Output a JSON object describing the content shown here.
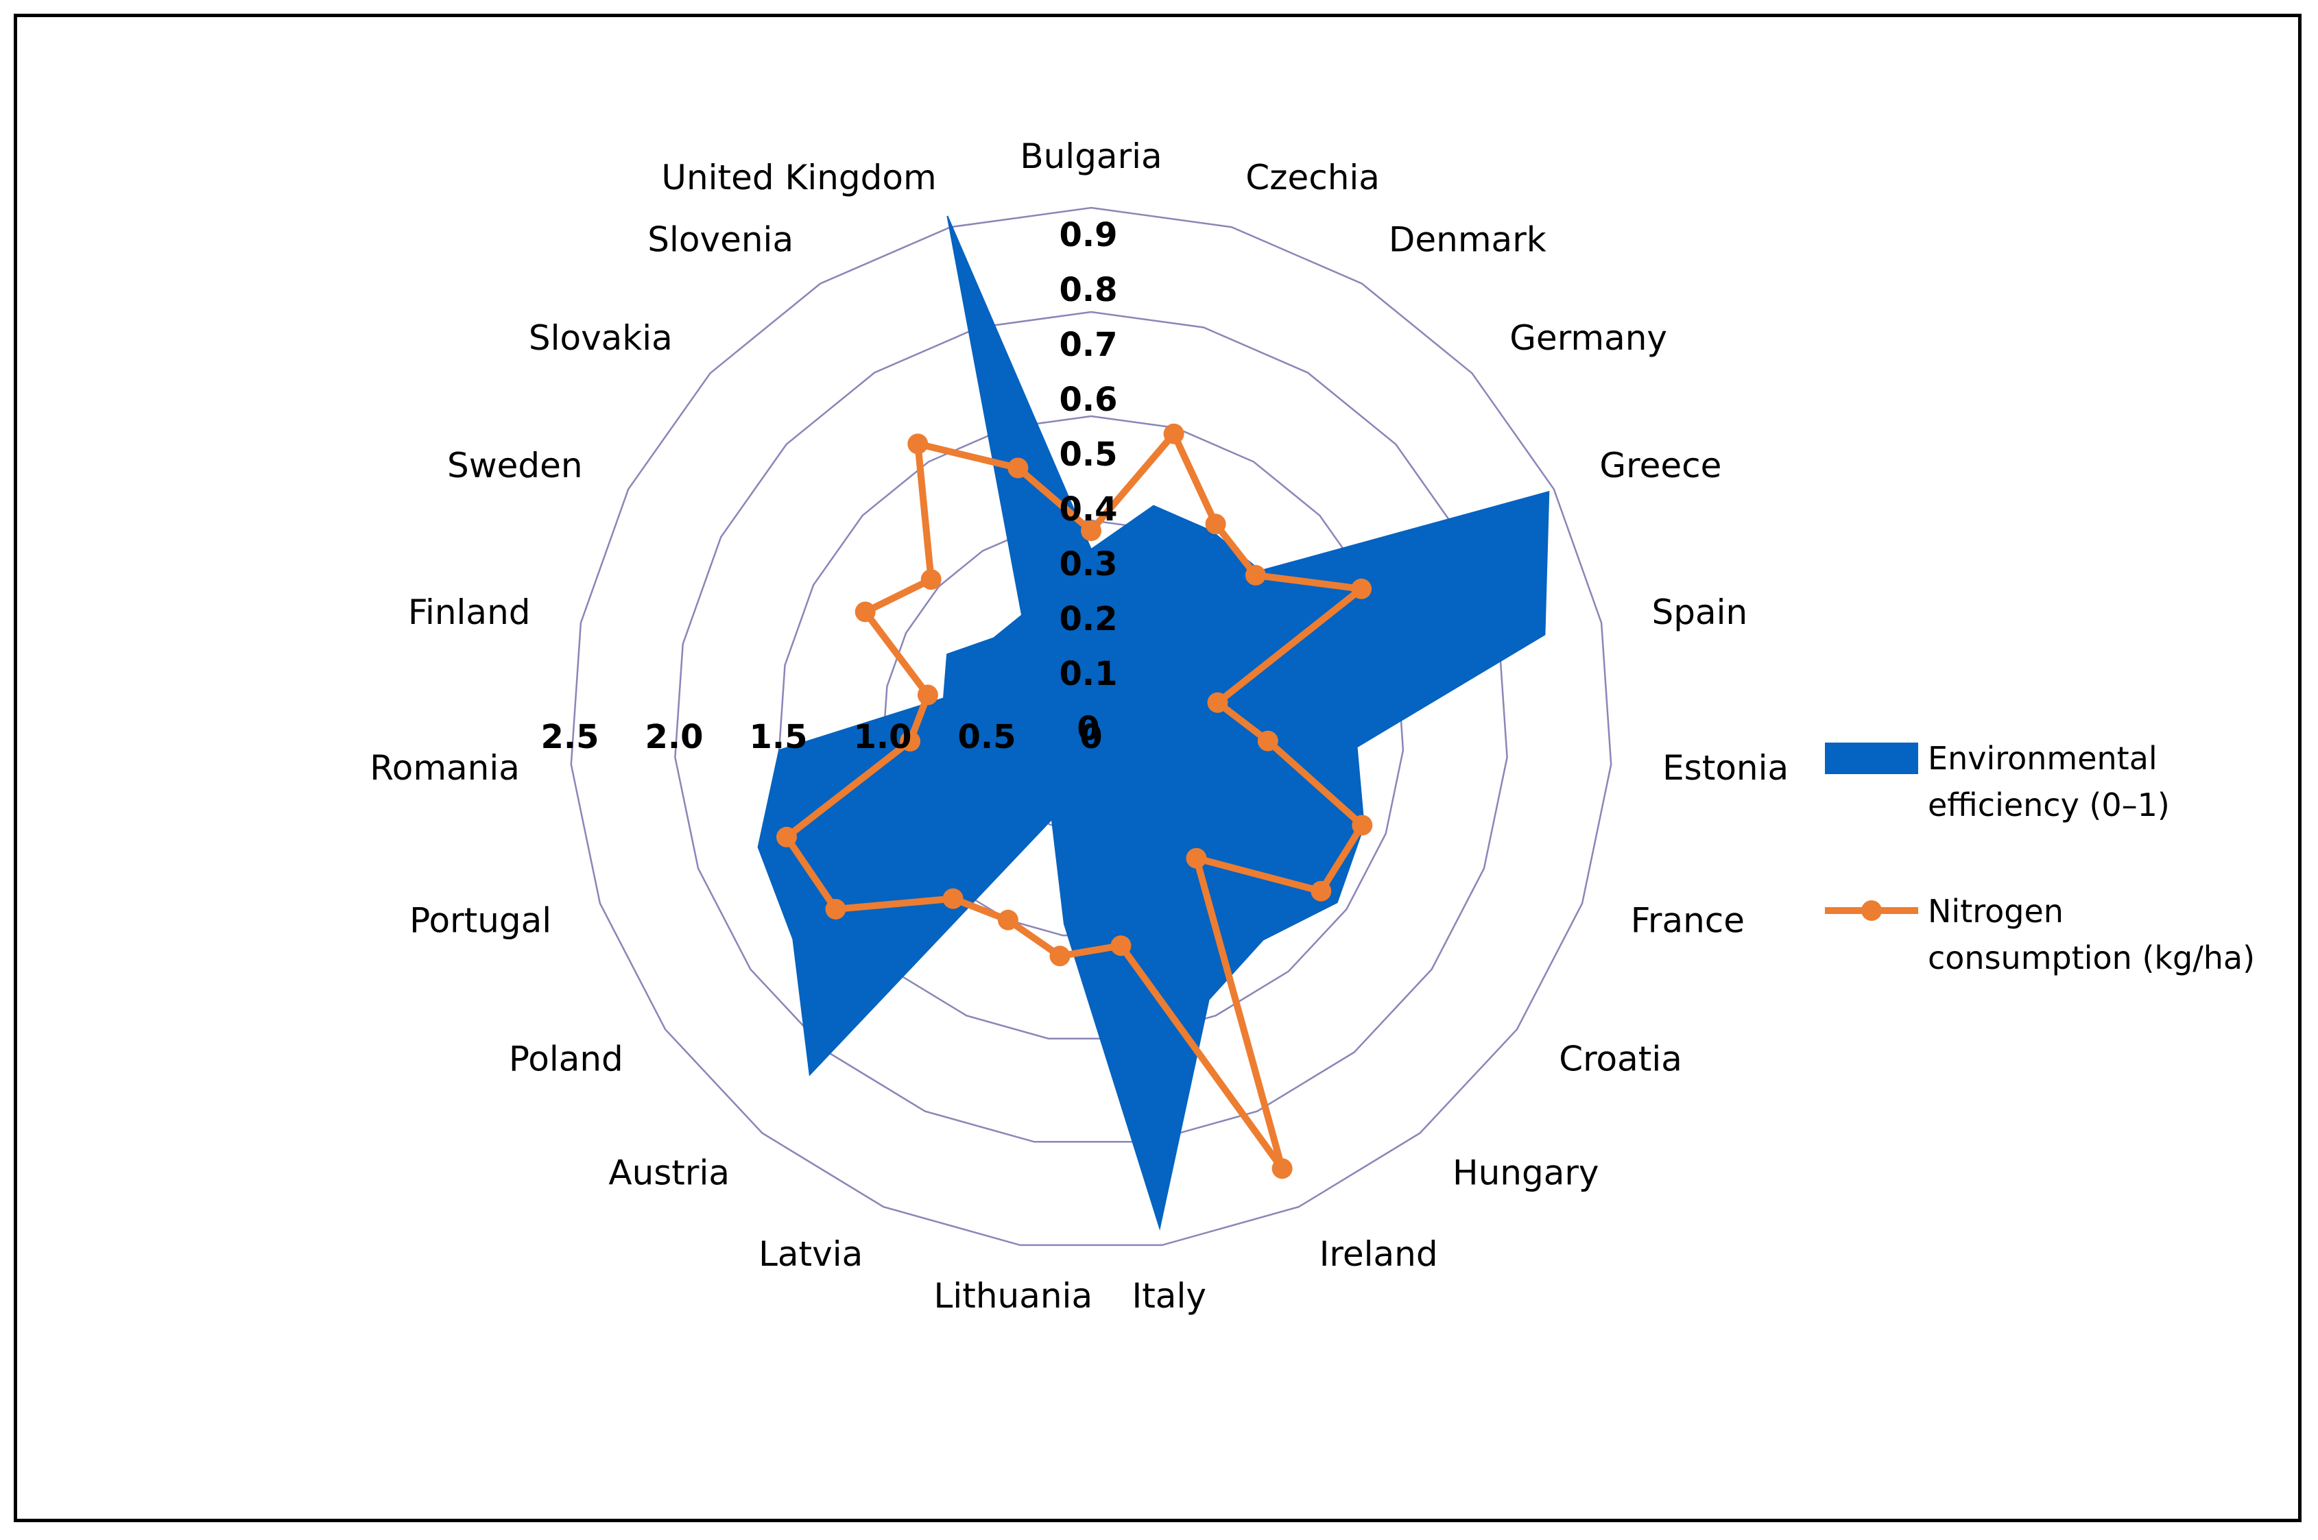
{
  "chart_data": {
    "type": "radar",
    "categories": [
      "Bulgaria",
      "Czechia",
      "Denmark",
      "Germany",
      "Greece",
      "Spain",
      "Estonia",
      "France",
      "Croatia",
      "Hungary",
      "Ireland",
      "Italy",
      "Lithuania",
      "Latvia",
      "Austria",
      "Poland",
      "Portugal",
      "Romania",
      "Finland",
      "Sweden",
      "Slovakia",
      "Slovenia",
      "United Kingdom"
    ],
    "series": [
      {
        "name": "Environmental efficiency (0–1)",
        "style": "filled area",
        "color": "#0563C1",
        "axis": "efficiency",
        "values": [
          0.31,
          0.4,
          0.4,
          0.4,
          0.89,
          0.8,
          0.46,
          0.5,
          0.52,
          0.47,
          0.51,
          0.87,
          0.34,
          0.17,
          0.77,
          0.63,
          0.61,
          0.54,
          0.26,
          0.28,
          0.23,
          0.23,
          0.92
        ]
      },
      {
        "name": "Nitrogen consumption (kg/ha)",
        "style": "line with markers",
        "color": "#ED7D31",
        "axis": "nitrogen",
        "values": [
          0.95,
          1.47,
          1.15,
          1.08,
          1.46,
          0.62,
          0.85,
          1.38,
          1.35,
          0.8,
          2.3,
          1.05,
          1.1,
          1.0,
          1.05,
          1.5,
          1.55,
          0.87,
          0.8,
          1.22,
          1.05,
          1.6,
          1.3
        ]
      }
    ],
    "radial_axis_efficiency": {
      "ticks": [
        "0",
        "0.1",
        "0.2",
        "0.3",
        "0.4",
        "0.5",
        "0.6",
        "0.7",
        "0.8",
        "0.9"
      ],
      "range": [
        0,
        0.9
      ]
    },
    "radial_axis_nitrogen": {
      "ticks": [
        "0",
        "0.5",
        "1.0",
        "1.5",
        "2.0",
        "2.5"
      ],
      "range": [
        0,
        2.5
      ]
    },
    "legend": {
      "position": "right",
      "items": [
        {
          "lines": [
            "Environmental",
            "efficiency (0–1)"
          ],
          "swatch": "area",
          "color": "#0563C1"
        },
        {
          "lines": [
            "Nitrogen",
            "consumption (kg/ha)"
          ],
          "swatch": "line-marker",
          "color": "#ED7D31"
        }
      ]
    },
    "grid": true,
    "grid_color": "#8A86B8"
  }
}
